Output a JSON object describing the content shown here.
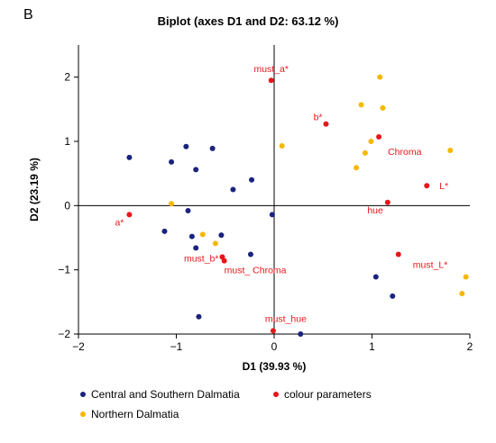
{
  "panel_letter": "B",
  "chart_data": {
    "type": "scatter",
    "title": "Biplot (axes D1 and D2: 63.12 %)",
    "xlabel": "D1 (39.93 %)",
    "ylabel": "D2 (23.19 %)",
    "xlim": [
      -2,
      2
    ],
    "ylim": [
      -2,
      2.5
    ],
    "x_ticks": [
      "-2",
      "-1",
      "0",
      "1",
      "2"
    ],
    "y_ticks": [
      "-2",
      "-1",
      "0",
      "1",
      "2"
    ],
    "grid": false,
    "legend_position": "bottom",
    "series": [
      {
        "name": "Central and Southern Dalmatia",
        "color": "#1a237e",
        "points": [
          [
            -1.48,
            0.75
          ],
          [
            -1.05,
            0.68
          ],
          [
            -0.9,
            0.92
          ],
          [
            -0.63,
            0.89
          ],
          [
            -0.8,
            0.56
          ],
          [
            -0.23,
            0.4
          ],
          [
            -0.42,
            0.25
          ],
          [
            -0.02,
            -0.14
          ],
          [
            -0.88,
            -0.08
          ],
          [
            -1.12,
            -0.4
          ],
          [
            -0.84,
            -0.48
          ],
          [
            -0.54,
            -0.46
          ],
          [
            -0.8,
            -0.66
          ],
          [
            -0.24,
            -0.76
          ],
          [
            -0.77,
            -1.73
          ],
          [
            0.27,
            -2.0
          ],
          [
            1.04,
            -1.11
          ],
          [
            1.21,
            -1.41
          ]
        ]
      },
      {
        "name": "colour parameters",
        "color": "#e8161b",
        "points": [
          {
            "x": -0.03,
            "y": 1.95,
            "label": "must_a*"
          },
          {
            "x": 0.53,
            "y": 1.27,
            "label": "b*"
          },
          {
            "x": 1.07,
            "y": 1.07,
            "label": "Chroma"
          },
          {
            "x": 1.56,
            "y": 0.31,
            "label": "L*"
          },
          {
            "x": 1.16,
            "y": 0.05,
            "label": "hue"
          },
          {
            "x": -1.48,
            "y": -0.14,
            "label": "a*"
          },
          {
            "x": -0.53,
            "y": -0.8,
            "label": "must_b*"
          },
          {
            "x": -0.51,
            "y": -0.86,
            "label": "must_ Chroma"
          },
          {
            "x": 1.27,
            "y": -0.76,
            "label": "must_L*"
          },
          {
            "x": -0.01,
            "y": -1.95,
            "label": "must_hue"
          }
        ]
      },
      {
        "name": "Northern Dalmatia",
        "color": "#f5b800",
        "points": [
          [
            1.08,
            2.0
          ],
          [
            0.89,
            1.57
          ],
          [
            1.11,
            1.52
          ],
          [
            0.99,
            1.0
          ],
          [
            0.93,
            0.82
          ],
          [
            0.08,
            0.93
          ],
          [
            1.8,
            0.86
          ],
          [
            0.84,
            0.59
          ],
          [
            -1.05,
            0.03
          ],
          [
            -0.73,
            -0.45
          ],
          [
            -0.6,
            -0.59
          ],
          [
            1.96,
            -1.11
          ],
          [
            1.92,
            -1.37
          ]
        ]
      }
    ]
  }
}
